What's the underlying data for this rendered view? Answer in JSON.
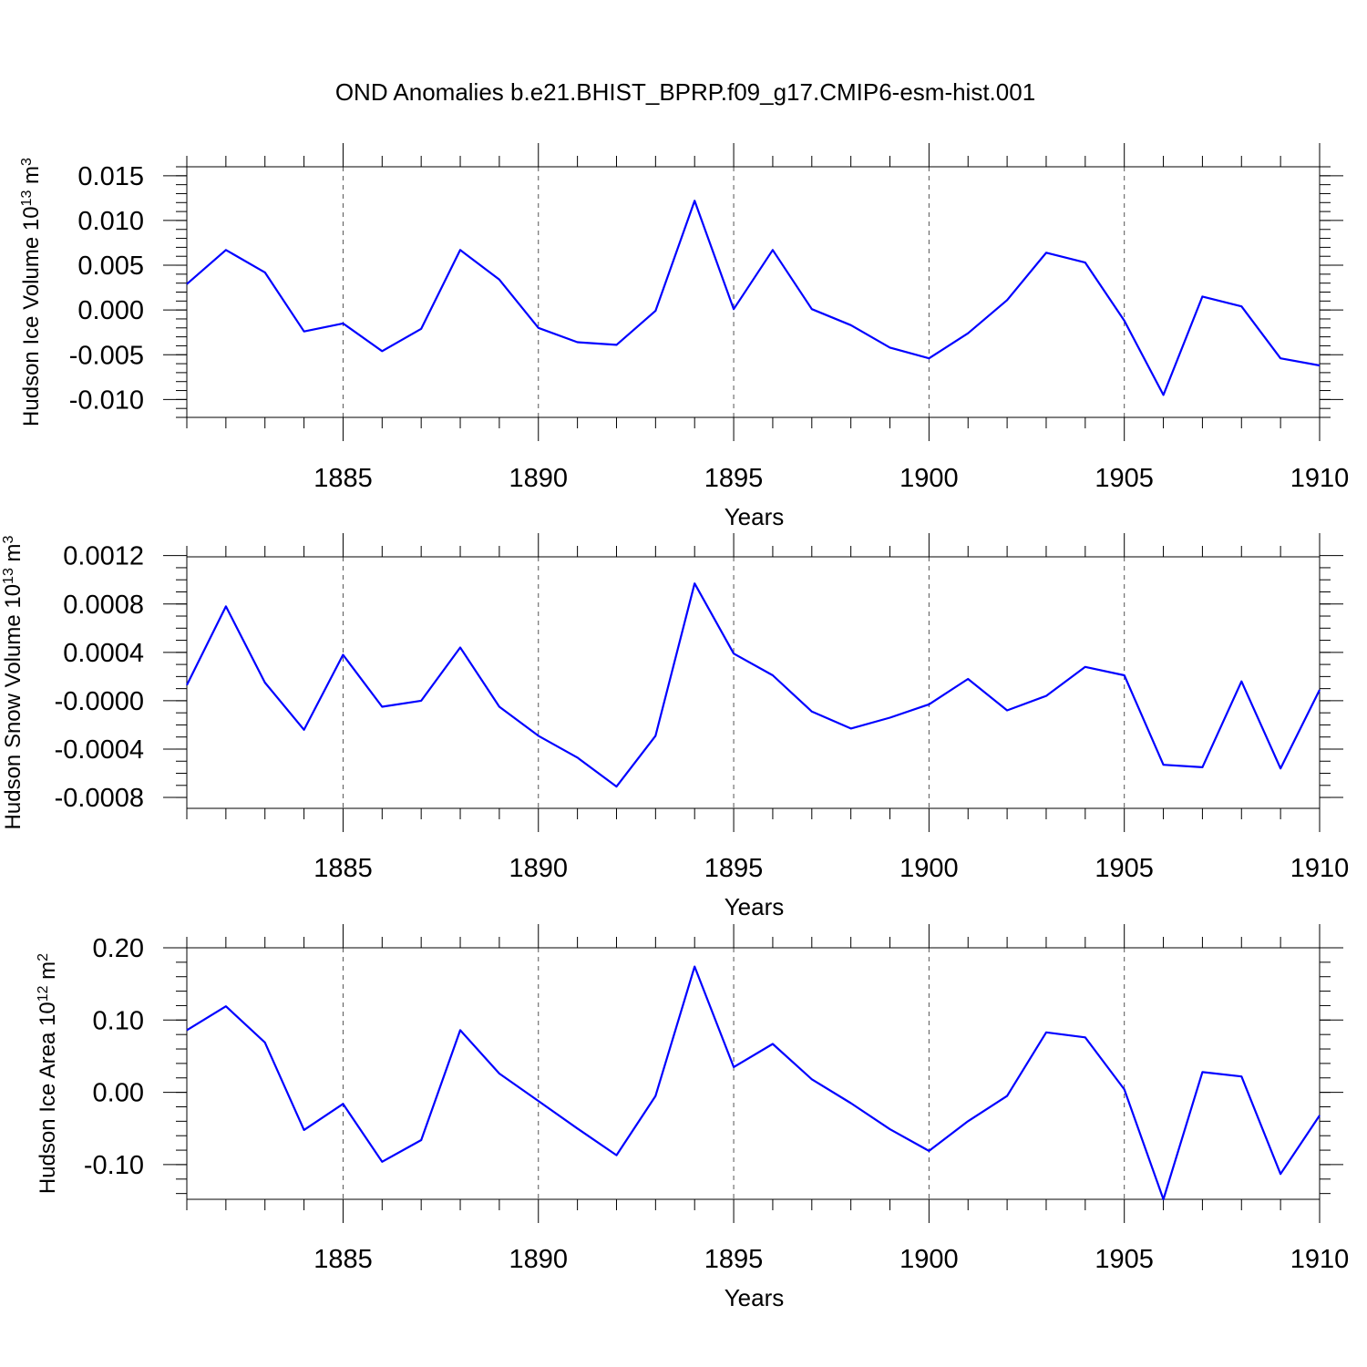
{
  "figure_title": "OND Anomalies b.e21.BHIST_BPRP.f09_g17.CMIP6-esm-hist.001",
  "colors": {
    "series": "#0000ff",
    "axes": "#000000",
    "grid": "#555555"
  },
  "chart_data": [
    {
      "type": "line",
      "title": "",
      "xlabel": "Years",
      "ylabel": "Hudson Ice Volume 10",
      "ylabel_exp": "13",
      "ylabel_unit": " m",
      "ylabel_unit_exp": "3",
      "xlim": [
        1881,
        1910
      ],
      "ylim": [
        -0.012,
        0.016
      ],
      "x_ticks": [
        1885,
        1890,
        1895,
        1900,
        1905,
        1910
      ],
      "x_tick_labels": [
        "1885",
        "1890",
        "1895",
        "1900",
        "1905",
        "1910"
      ],
      "y_ticks": [
        -0.01,
        -0.005,
        0.0,
        0.005,
        0.01,
        0.015
      ],
      "y_tick_labels": [
        "-0.010",
        "-0.005",
        "0.000",
        "0.005",
        "0.010",
        "0.015"
      ],
      "y_minor_step": 0.001,
      "grid": "vertical dashed at major x ticks",
      "series": [
        {
          "x": [
            1881,
            1882,
            1883,
            1884,
            1885,
            1886,
            1887,
            1888,
            1889,
            1890,
            1891,
            1892,
            1893,
            1894,
            1895,
            1896,
            1897,
            1898,
            1899,
            1900,
            1901,
            1902,
            1903,
            1904,
            1905,
            1906,
            1907,
            1908,
            1909,
            1910
          ],
          "values": [
            0.0029,
            0.0067,
            0.0042,
            -0.0024,
            -0.0015,
            -0.0046,
            -0.0021,
            0.0067,
            0.0034,
            -0.002,
            -0.0036,
            -0.0039,
            -0.0001,
            0.0122,
            0.0001,
            0.0067,
            0.0001,
            -0.0017,
            -0.0042,
            -0.0054,
            -0.0026,
            0.0011,
            0.0064,
            0.0053,
            -0.0012,
            -0.0095,
            0.0015,
            0.0004,
            -0.0054,
            -0.0062
          ]
        }
      ]
    },
    {
      "type": "line",
      "title": "",
      "xlabel": "Years",
      "ylabel": "Hudson Snow Volume 10",
      "ylabel_exp": "13",
      "ylabel_unit": " m",
      "ylabel_unit_exp": "3",
      "xlim": [
        1881,
        1910
      ],
      "ylim": [
        -0.00089,
        0.00119
      ],
      "x_ticks": [
        1885,
        1890,
        1895,
        1900,
        1905,
        1910
      ],
      "x_tick_labels": [
        "1885",
        "1890",
        "1895",
        "1900",
        "1905",
        "1910"
      ],
      "y_ticks": [
        -0.0008,
        -0.0004,
        0.0,
        0.0004,
        0.0008,
        0.0012
      ],
      "y_tick_labels": [
        "-0.0008",
        "-0.0004",
        "-0.0000",
        "0.0004",
        "0.0008",
        "0.0012"
      ],
      "y_minor_step": 0.0001,
      "grid": "vertical dashed at major x ticks",
      "series": [
        {
          "x": [
            1881,
            1882,
            1883,
            1884,
            1885,
            1886,
            1887,
            1888,
            1889,
            1890,
            1891,
            1892,
            1893,
            1894,
            1895,
            1896,
            1897,
            1898,
            1899,
            1900,
            1901,
            1902,
            1903,
            1904,
            1905,
            1906,
            1907,
            1908,
            1909,
            1910
          ],
          "values": [
            0.00013,
            0.00078,
            0.00015,
            -0.00024,
            0.00038,
            -5e-05,
            0.0,
            0.00044,
            -5e-05,
            -0.00029,
            -0.00047,
            -0.00071,
            -0.00029,
            0.00097,
            0.00039,
            0.00021,
            -9e-05,
            -0.00023,
            -0.00014,
            -3e-05,
            0.00018,
            -8e-05,
            4e-05,
            0.00028,
            0.00021,
            -0.00053,
            -0.00055,
            0.00016,
            -0.00056,
            9e-05
          ]
        }
      ]
    },
    {
      "type": "line",
      "title": "",
      "xlabel": "Years",
      "ylabel": "Hudson Ice Area 10",
      "ylabel_exp": "12",
      "ylabel_unit": " m",
      "ylabel_unit_exp": "2",
      "xlim": [
        1881,
        1910
      ],
      "ylim": [
        -0.148,
        0.2
      ],
      "x_ticks": [
        1885,
        1890,
        1895,
        1900,
        1905,
        1910
      ],
      "x_tick_labels": [
        "1885",
        "1890",
        "1895",
        "1900",
        "1905",
        "1910"
      ],
      "y_ticks": [
        -0.1,
        0.0,
        0.1,
        0.2
      ],
      "y_tick_labels": [
        "-0.10",
        "0.00",
        "0.10",
        "0.20"
      ],
      "y_minor_step": 0.02,
      "grid": "vertical dashed at major x ticks",
      "series": [
        {
          "x": [
            1881,
            1882,
            1883,
            1884,
            1885,
            1886,
            1887,
            1888,
            1889,
            1890,
            1891,
            1892,
            1893,
            1894,
            1895,
            1896,
            1897,
            1898,
            1899,
            1900,
            1901,
            1902,
            1903,
            1904,
            1905,
            1906,
            1907,
            1908,
            1909,
            1910
          ],
          "values": [
            0.086,
            0.119,
            0.069,
            -0.052,
            -0.016,
            -0.096,
            -0.066,
            0.086,
            0.026,
            -0.012,
            -0.05,
            -0.087,
            -0.005,
            0.174,
            0.035,
            0.067,
            0.018,
            -0.015,
            -0.051,
            -0.081,
            -0.04,
            -0.005,
            0.083,
            0.076,
            0.004,
            -0.148,
            0.028,
            0.022,
            -0.113,
            -0.032
          ]
        }
      ]
    }
  ]
}
